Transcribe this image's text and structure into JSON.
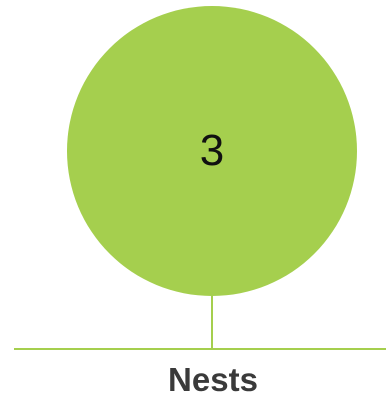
{
  "node": {
    "value": "3",
    "label": "Nests",
    "fill_color": "#a5cf4e",
    "line_color": "#a5cf4e",
    "value_color": "#111111",
    "label_color": "#3a3a3a"
  }
}
